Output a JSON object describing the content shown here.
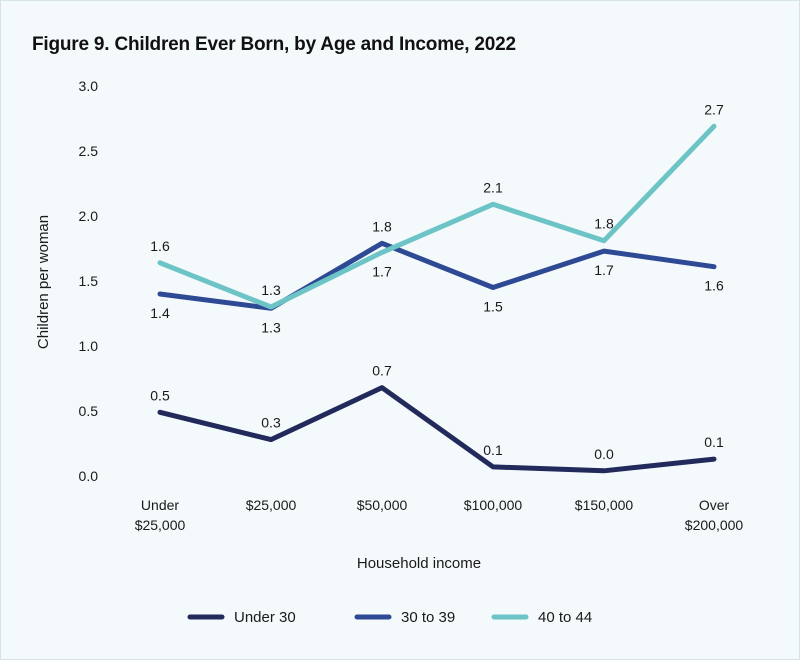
{
  "chart_data": {
    "type": "line",
    "title": "Figure 9. Children Ever Born, by Age and Income, 2022",
    "xlabel": "Household income",
    "ylabel": "Children per woman",
    "categories": [
      [
        "Under",
        "$25,000"
      ],
      [
        "$25,000"
      ],
      [
        "$50,000"
      ],
      [
        "$100,000"
      ],
      [
        "$150,000"
      ],
      [
        "Over",
        "$200,000"
      ]
    ],
    "ylim": [
      0,
      3.0
    ],
    "yticks": [
      "0.0",
      "0.5",
      "1.0",
      "1.5",
      "2.0",
      "2.5",
      "3.0"
    ],
    "grid": false,
    "legend": "bottom",
    "series": [
      {
        "name": "Under 30",
        "color": "#222a5c",
        "values": [
          0.49,
          0.28,
          0.68,
          0.07,
          0.04,
          0.13
        ],
        "labels": [
          "0.5",
          "0.3",
          "0.7",
          "0.1",
          "0.0",
          "0.1"
        ],
        "label_pos": [
          "above",
          "above",
          "above",
          "above",
          "above",
          "above"
        ]
      },
      {
        "name": "30 to 39",
        "color": "#2e4a94",
        "values": [
          1.4,
          1.29,
          1.79,
          1.45,
          1.73,
          1.61
        ],
        "labels": [
          "1.4",
          "1.3",
          "1.8",
          "1.5",
          "1.7",
          "1.6"
        ],
        "label_pos": [
          "below",
          "below",
          "above",
          "below",
          "below",
          "below"
        ]
      },
      {
        "name": "40 to 44",
        "color": "#6cc4c6",
        "values": [
          1.64,
          1.3,
          1.72,
          2.09,
          1.81,
          2.69
        ],
        "labels": [
          "1.6",
          "1.3",
          "1.7",
          "2.1",
          "1.8",
          "2.7"
        ],
        "label_pos": [
          "above",
          "above",
          "below",
          "above",
          "above",
          "above"
        ]
      }
    ]
  }
}
